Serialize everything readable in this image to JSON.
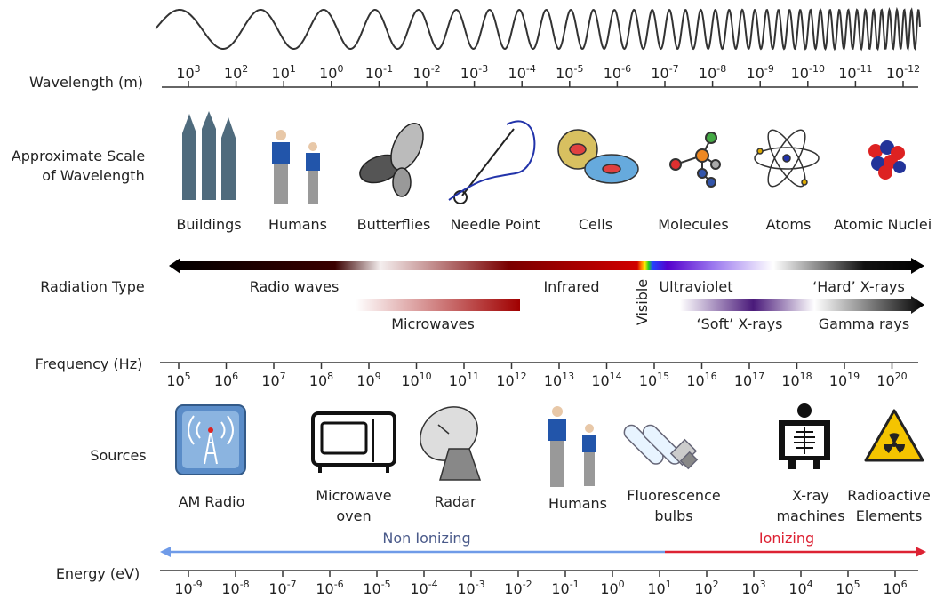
{
  "wavelength": {
    "label": "Wavelength (m)",
    "base": "10",
    "exponents": [
      3,
      2,
      1,
      0,
      -1,
      -2,
      -3,
      -4,
      -5,
      -6,
      -7,
      -8,
      -9,
      -10,
      -11,
      -12
    ]
  },
  "scale": {
    "label": [
      "Approximate Scale",
      "of Wavelength"
    ],
    "items": [
      "Buildings",
      "Humans",
      "Butterflies",
      "Needle Point",
      "Cells",
      "Molecules",
      "Atoms",
      "Atomic Nuclei"
    ]
  },
  "radiation": {
    "label": "Radiation Type",
    "radio": "Radio waves",
    "infrared": "Infrared",
    "visible": "Visible",
    "ultraviolet": "Ultraviolet",
    "hard_xrays": "‘Hard’ X-rays",
    "microwaves": "Microwaves",
    "soft_xrays": "‘Soft’ X-rays",
    "gamma": "Gamma rays"
  },
  "frequency": {
    "label": "Frequency (Hz)",
    "base": "10",
    "exponents": [
      5,
      6,
      7,
      8,
      9,
      10,
      11,
      12,
      13,
      14,
      15,
      16,
      17,
      18,
      19,
      20
    ]
  },
  "sources": {
    "label": "Sources",
    "items": [
      [
        "AM Radio"
      ],
      [
        "Microwave",
        "oven"
      ],
      [
        "Radar"
      ],
      [
        "Humans"
      ],
      [
        "Fluorescence",
        "bulbs"
      ],
      [
        "X-ray",
        "machines"
      ],
      [
        "Radioactive",
        "Elements"
      ]
    ]
  },
  "ionization": {
    "non_ionizing": "Non Ionizing",
    "ionizing": "Ionizing"
  },
  "energy": {
    "label": "Energy (eV)",
    "base": "10",
    "exponents": [
      -9,
      -8,
      -7,
      -6,
      -5,
      -4,
      -3,
      -2,
      -1,
      0,
      1,
      2,
      3,
      4,
      5,
      6
    ]
  }
}
